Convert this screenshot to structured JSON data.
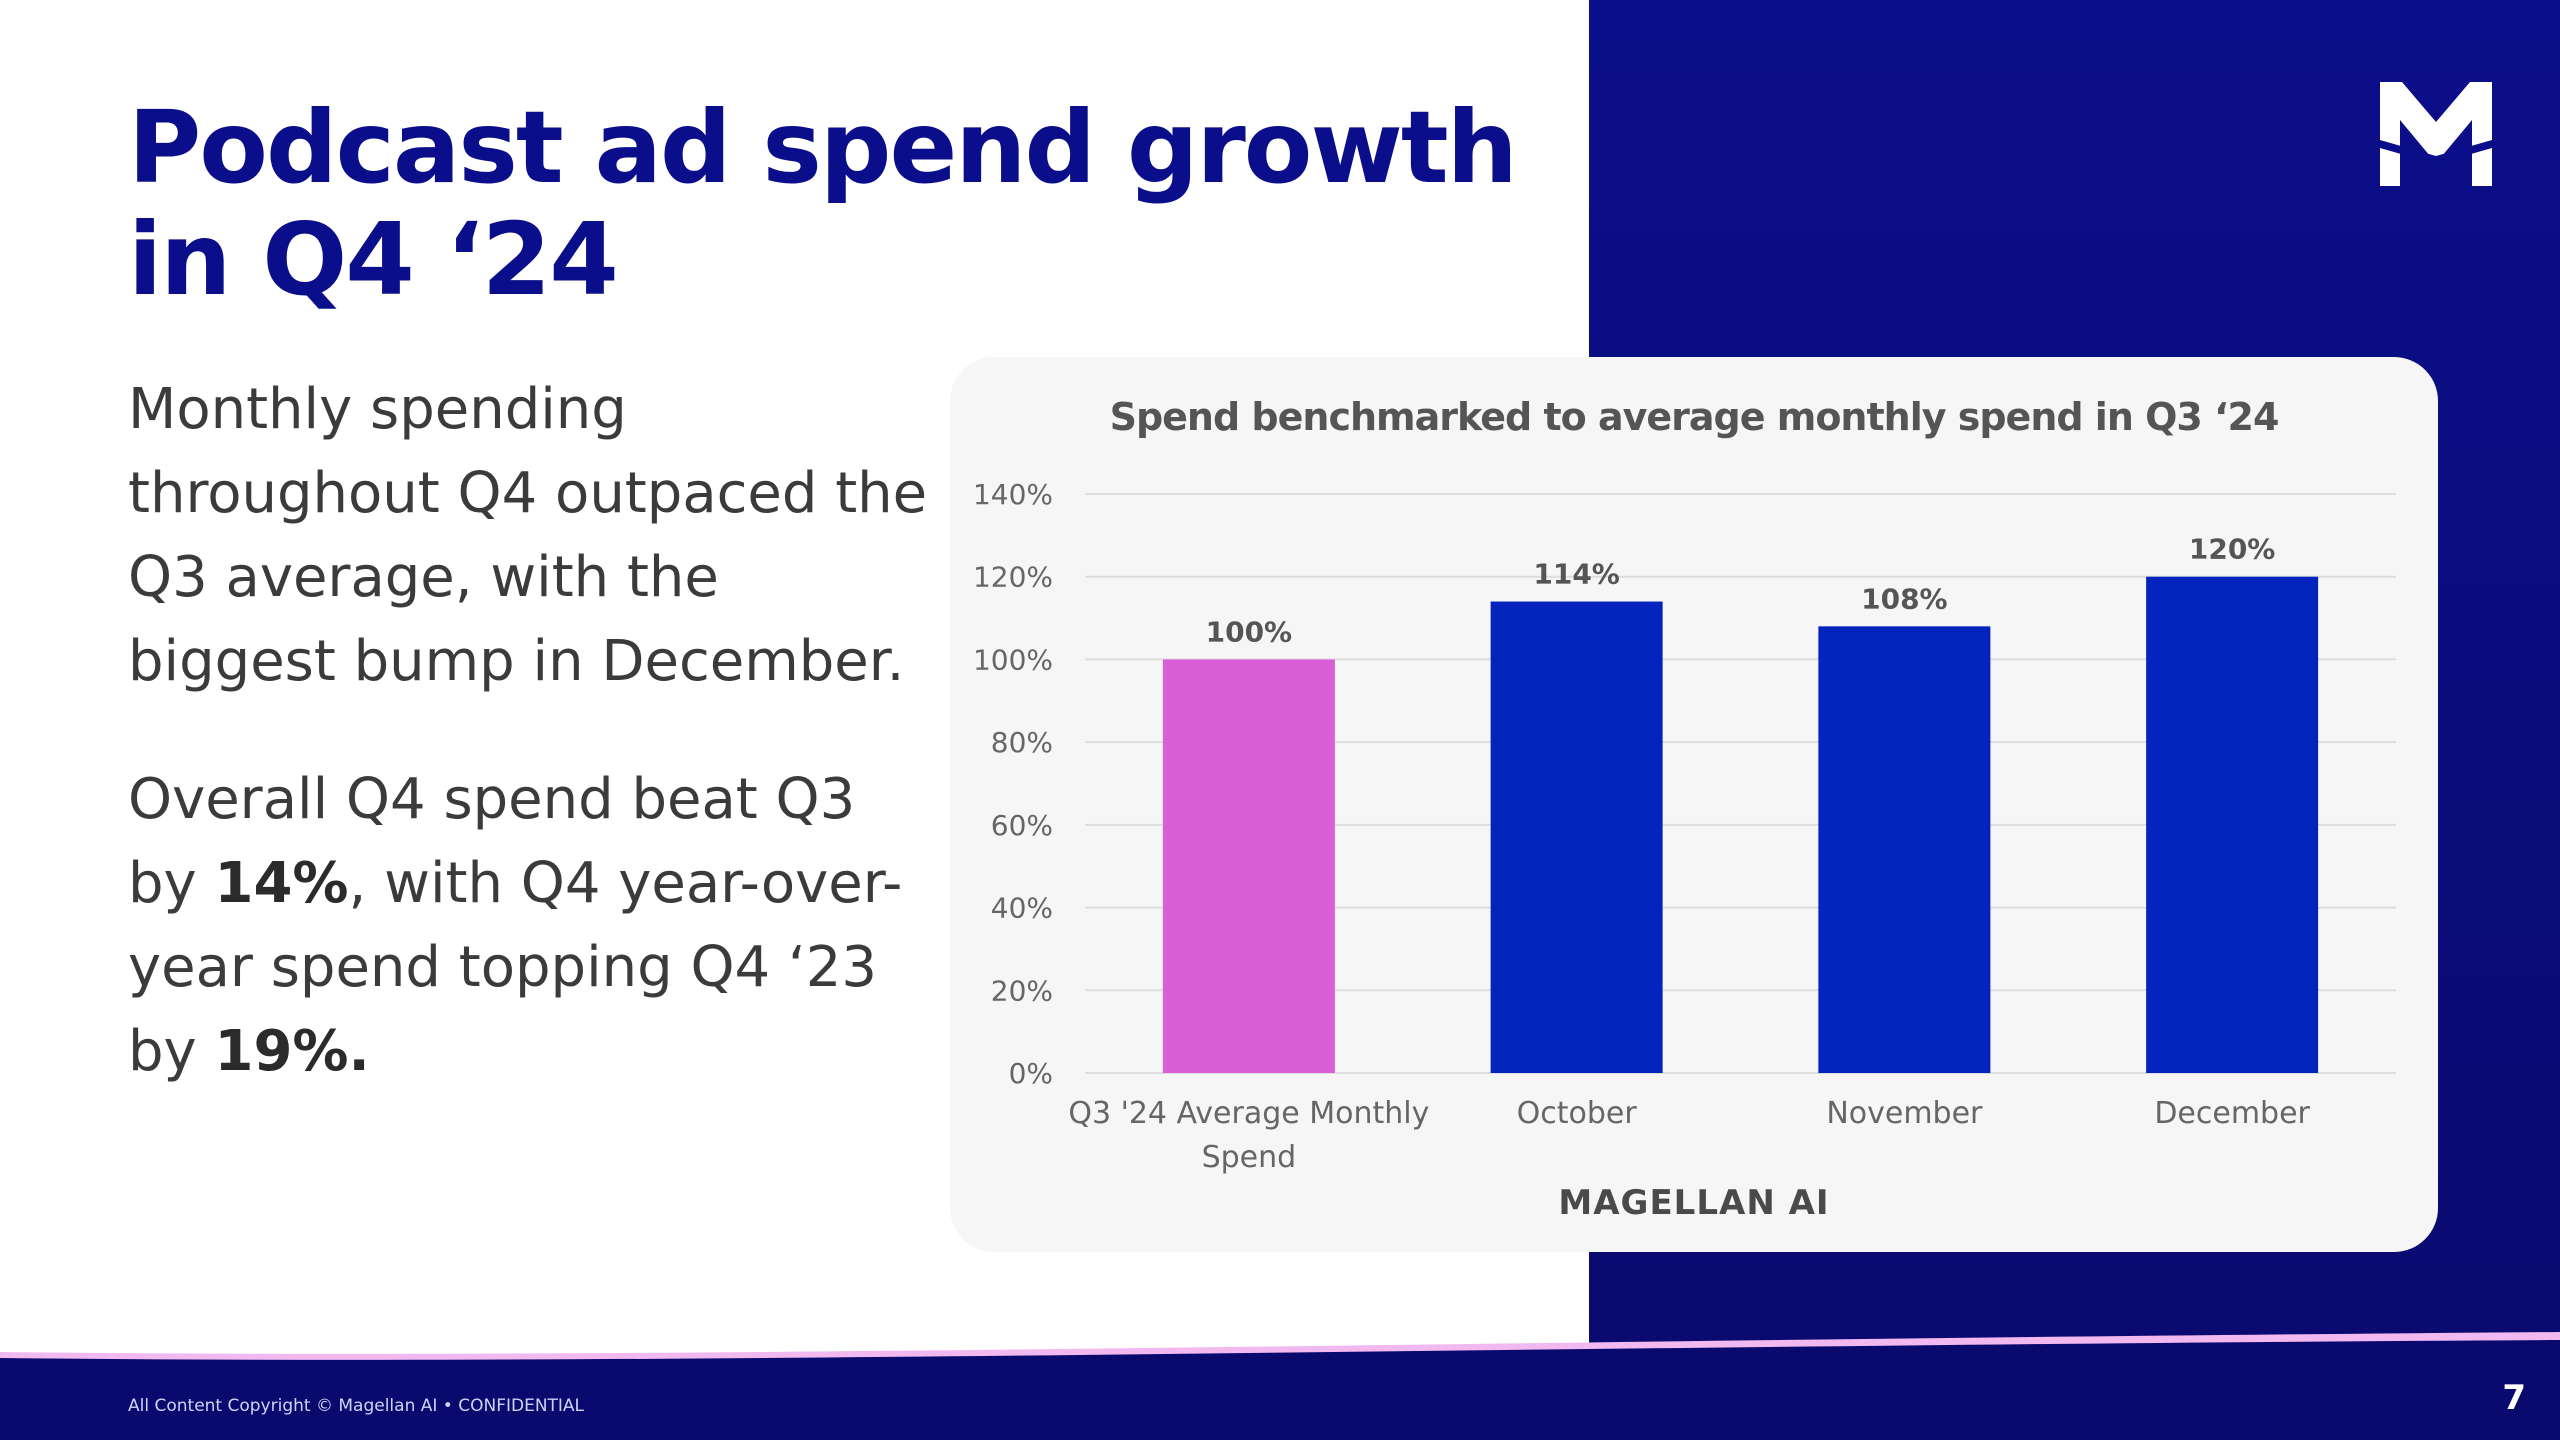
{
  "slide": {
    "title": "Podcast ad spend growth in Q4 ‘24",
    "paragraph1": "Monthly spending throughout Q4 outpaced the Q3 average, with the biggest bump in December.",
    "paragraph2": {
      "part1": "Overall Q4 spend beat Q3 by ",
      "bold1": "14%",
      "part2": ", with Q4 year-over-year spend topping Q4 ‘23 by ",
      "bold2": "19%."
    },
    "footer_text": "All Content Copyright © Magellan AI • CONFIDENTIAL",
    "page_number": "7",
    "logo_icon": "magellan-m-logo-icon"
  },
  "chart_data": {
    "type": "bar",
    "title": "Spend benchmarked to average monthly spend in Q3 ‘24",
    "categories": [
      [
        "Q3 '24 Average Monthly",
        "Spend"
      ],
      [
        "October"
      ],
      [
        "November"
      ],
      [
        "December"
      ]
    ],
    "values": [
      100,
      114,
      108,
      120
    ],
    "value_labels": [
      "100%",
      "114%",
      "108%",
      "120%"
    ],
    "bar_colors": [
      "#d95fd6",
      "#0224bd",
      "#0224bd",
      "#0224bd"
    ],
    "ylim": [
      0,
      140
    ],
    "yticks": [
      "0%",
      "20%",
      "40%",
      "60%",
      "80%",
      "100%",
      "120%",
      "140%"
    ],
    "ytick_values": [
      0,
      20,
      40,
      60,
      80,
      100,
      120,
      140
    ],
    "grid": true,
    "legend": "none",
    "watermark": "MAGELLAN AI"
  }
}
